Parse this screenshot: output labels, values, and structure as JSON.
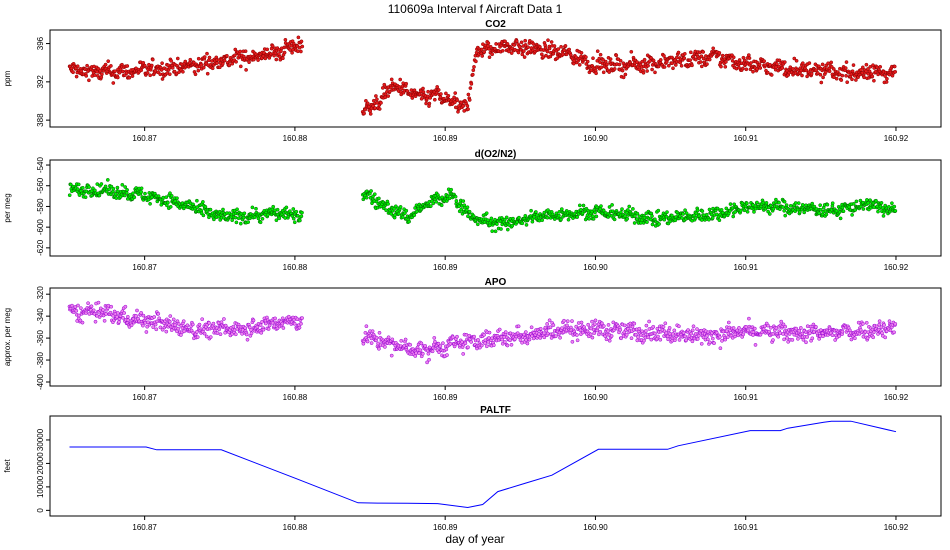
{
  "page_title": "110609a   Interval f Aircraft Data 1",
  "x_axis_title": "day of year",
  "chart_data": [
    {
      "type": "scatter",
      "title": "CO2",
      "ylabel": "ppm",
      "color": "#e41a1c",
      "outline": "#8b0000",
      "xlim": [
        160.8645,
        160.921
      ],
      "xticks": [
        160.87,
        160.88,
        160.89,
        160.9,
        160.91,
        160.92
      ],
      "xtick_labels": [
        "160.87",
        "160.88",
        "160.89",
        "160.90",
        "160.91",
        "160.92"
      ],
      "ylim": [
        387.7,
        397.0
      ],
      "yticks": [
        388,
        392,
        396
      ],
      "ytick_labels": [
        "388",
        "392",
        "396"
      ],
      "gap": [
        160.8805,
        160.8845
      ],
      "x": [
        160.865,
        160.867,
        160.869,
        160.871,
        160.873,
        160.875,
        160.877,
        160.879,
        160.8803,
        160.8845,
        160.8855,
        160.8865,
        160.8875,
        160.8885,
        160.8895,
        160.8905,
        160.8915,
        160.892,
        160.894,
        160.896,
        160.898,
        160.9,
        160.902,
        160.904,
        160.906,
        160.908,
        160.91,
        160.912,
        160.914,
        160.916,
        160.918,
        160.92
      ],
      "values": [
        393.2,
        393.0,
        393.1,
        393.4,
        393.6,
        394.2,
        394.6,
        395.1,
        396.0,
        389.0,
        389.8,
        391.6,
        391.0,
        390.3,
        390.6,
        389.8,
        389.2,
        395.0,
        395.8,
        395.4,
        395.0,
        393.8,
        393.7,
        394.0,
        394.3,
        394.6,
        393.9,
        393.5,
        393.3,
        393.0,
        392.9,
        393.1
      ],
      "noise": 0.6
    },
    {
      "type": "scatter",
      "title": "d(O2/N2)",
      "ylabel": "per meg",
      "color": "#00ee00",
      "outline": "#006400",
      "xlim": [
        160.8645,
        160.921
      ],
      "xticks": [
        160.87,
        160.88,
        160.89,
        160.9,
        160.91,
        160.92
      ],
      "xtick_labels": [
        "160.87",
        "160.88",
        "160.89",
        "160.90",
        "160.91",
        "160.92"
      ],
      "ylim": [
        -624,
        -539
      ],
      "yticks": [
        -540,
        -560,
        -580,
        -600,
        -620
      ],
      "ytick_labels": [
        "-540",
        "-560",
        "-580",
        "-600",
        "-620"
      ],
      "gap": [
        160.8805,
        160.8845
      ],
      "x": [
        160.865,
        160.867,
        160.869,
        160.871,
        160.873,
        160.875,
        160.877,
        160.879,
        160.8803,
        160.8845,
        160.886,
        160.8875,
        160.889,
        160.8905,
        160.892,
        160.894,
        160.896,
        160.898,
        160.9,
        160.902,
        160.904,
        160.906,
        160.908,
        160.91,
        160.912,
        160.914,
        160.916,
        160.918,
        160.92
      ],
      "values": [
        -564,
        -564,
        -567,
        -572,
        -580,
        -590,
        -589,
        -586,
        -590,
        -566,
        -580,
        -590,
        -576,
        -570,
        -593,
        -597,
        -590,
        -587,
        -585,
        -588,
        -592,
        -590,
        -587,
        -580,
        -580,
        -582,
        -584,
        -578,
        -584
      ],
      "noise": 4.5
    },
    {
      "type": "scatter",
      "title": "APO",
      "ylabel": "approx. per meg",
      "color": "#ee82ee",
      "outline": "#9400d3",
      "xlim": [
        160.8645,
        160.921
      ],
      "xticks": [
        160.87,
        160.88,
        160.89,
        160.9,
        160.91,
        160.92
      ],
      "xtick_labels": [
        "160.87",
        "160.88",
        "160.89",
        "160.90",
        "160.91",
        "160.92"
      ],
      "ylim": [
        -400,
        -318
      ],
      "yticks": [
        -320,
        -340,
        -360,
        -380,
        -400
      ],
      "ytick_labels": [
        "-320",
        "-340",
        "-360",
        "-380",
        "-400"
      ],
      "gap": [
        160.8805,
        160.8845
      ],
      "x": [
        160.865,
        160.867,
        160.869,
        160.871,
        160.873,
        160.875,
        160.877,
        160.879,
        160.8803,
        160.8845,
        160.8865,
        160.8885,
        160.8905,
        160.8925,
        160.895,
        160.8975,
        160.9,
        160.9025,
        160.905,
        160.9075,
        160.91,
        160.9125,
        160.915,
        160.9175,
        160.92
      ],
      "values": [
        -337,
        -336,
        -342,
        -346,
        -352,
        -352,
        -350,
        -346,
        -345,
        -358,
        -366,
        -372,
        -366,
        -362,
        -358,
        -352,
        -352,
        -354,
        -355,
        -358,
        -354,
        -355,
        -356,
        -353,
        -350
      ],
      "noise": 5.5
    },
    {
      "type": "line",
      "title": "PALTF",
      "ylabel": "feet",
      "color": "#0000ff",
      "xlim": [
        160.8645,
        160.921
      ],
      "xticks": [
        160.87,
        160.88,
        160.89,
        160.9,
        160.91,
        160.92
      ],
      "xtick_labels": [
        "160.87",
        "160.88",
        "160.89",
        "160.90",
        "160.91",
        "160.92"
      ],
      "ylim": [
        -700,
        38500
      ],
      "yticks": [
        0,
        10000,
        20000,
        30000
      ],
      "ytick_labels": [
        "0",
        "10000",
        "20000",
        "30000"
      ],
      "x": [
        160.865,
        160.8676,
        160.8701,
        160.8708,
        160.8751,
        160.8801,
        160.8842,
        160.8855,
        160.8875,
        160.8895,
        160.8915,
        160.8925,
        160.8935,
        160.8953,
        160.8971,
        160.9002,
        160.9048,
        160.9055,
        160.9103,
        160.9123,
        160.9128,
        160.9152,
        160.9157,
        160.917,
        160.92
      ],
      "values": [
        27000,
        27000,
        27000,
        25800,
        25800,
        13500,
        3200,
        3100,
        3000,
        2900,
        1200,
        2500,
        8000,
        11500,
        15000,
        26000,
        26000,
        27500,
        34000,
        34000,
        35000,
        37500,
        38000,
        38000,
        33500
      ]
    }
  ]
}
